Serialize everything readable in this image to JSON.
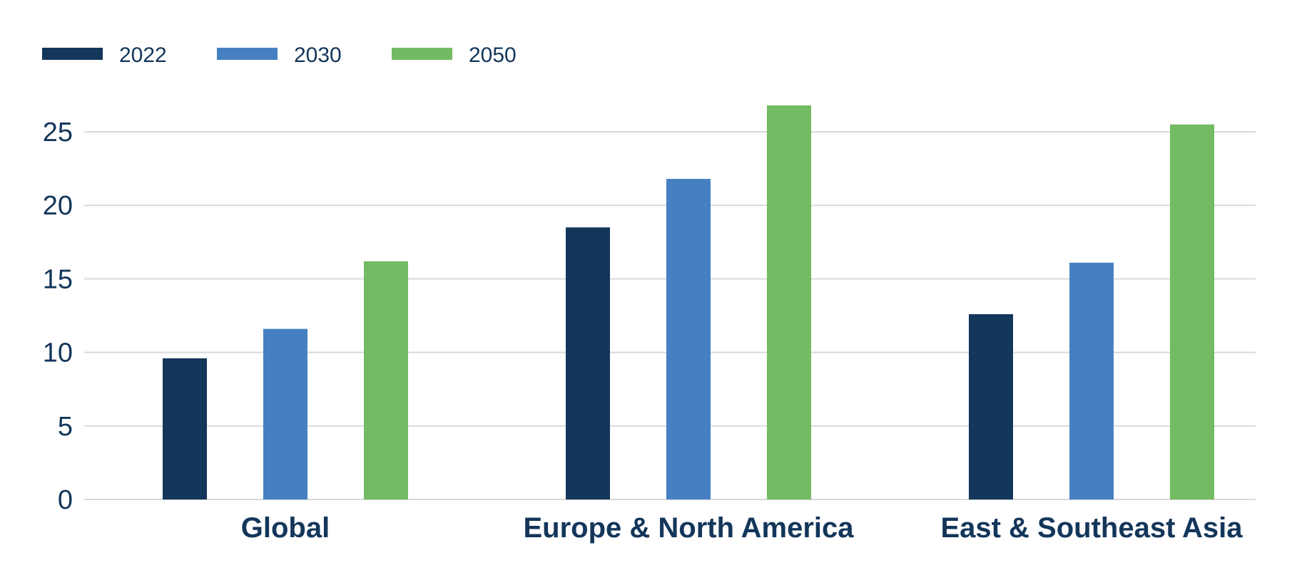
{
  "chart_data": {
    "type": "bar",
    "title": "",
    "xlabel": "",
    "ylabel": "",
    "categories": [
      "Global",
      "Europe & North America",
      "East & Southeast Asia"
    ],
    "series": [
      {
        "name": "2022",
        "color": "#13365a",
        "values": [
          9.6,
          18.5,
          12.6
        ]
      },
      {
        "name": "2030",
        "color": "#4680c2",
        "values": [
          11.6,
          21.8,
          16.1
        ]
      },
      {
        "name": "2050",
        "color": "#73bb62",
        "values": [
          16.2,
          26.8,
          25.5
        ]
      }
    ],
    "ylim": [
      0,
      27
    ],
    "yticks": [
      0,
      5,
      10,
      15,
      20,
      25
    ],
    "grid": true,
    "legend_position": "top-left"
  }
}
